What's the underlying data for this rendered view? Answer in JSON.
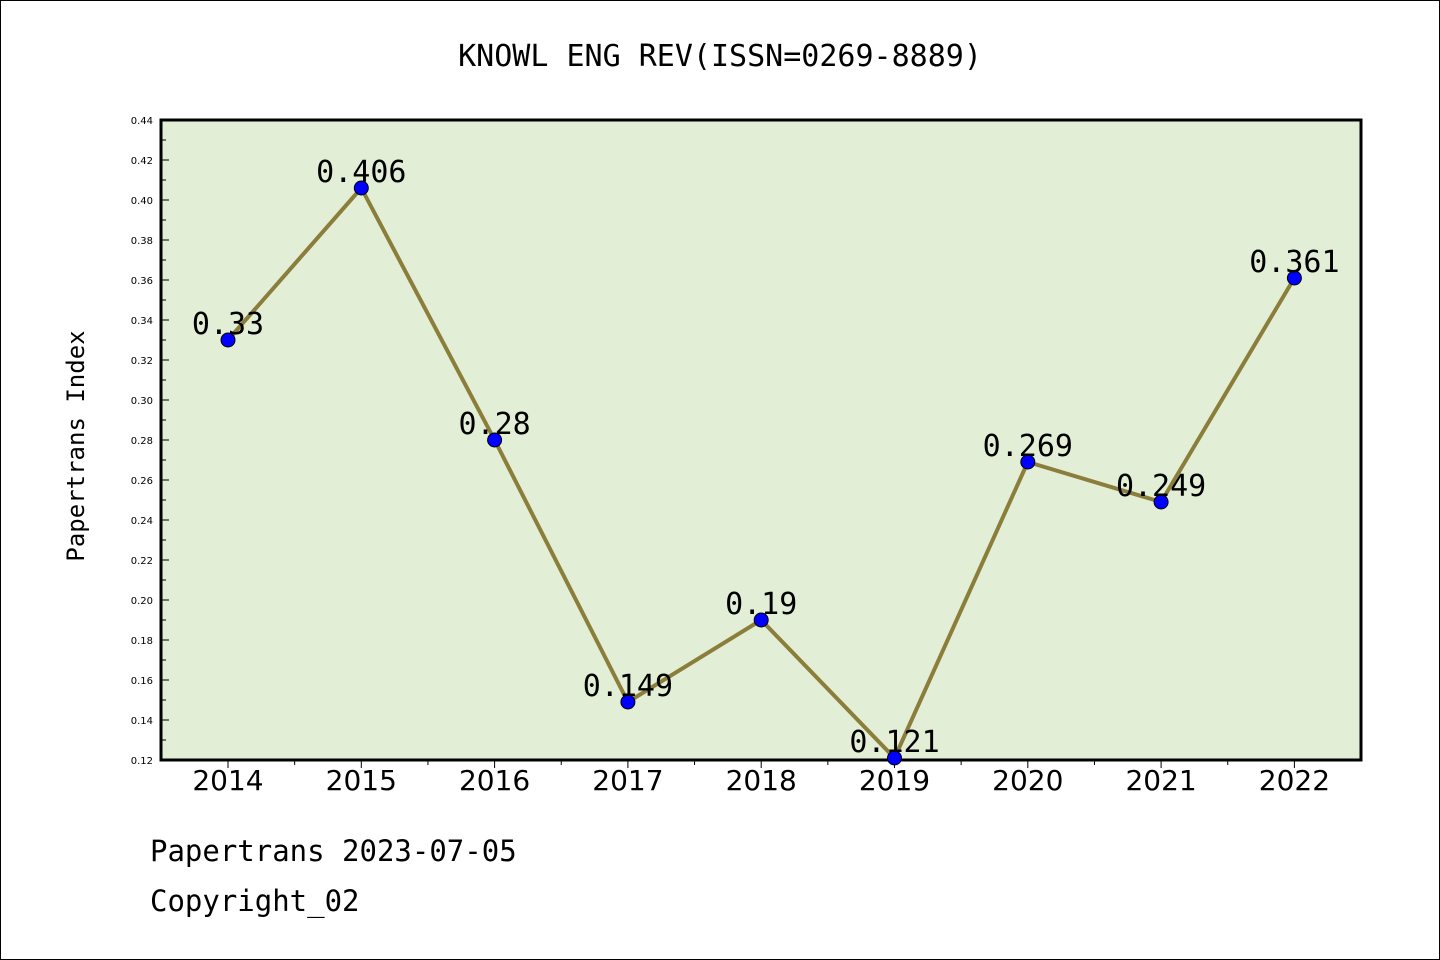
{
  "chart_data": {
    "type": "line",
    "title": "KNOWL ENG REV(ISSN=0269-8889)",
    "xlabel": "",
    "ylabel": "Papertrans Index",
    "categories": [
      "2014",
      "2015",
      "2016",
      "2017",
      "2018",
      "2019",
      "2020",
      "2021",
      "2022"
    ],
    "series": [
      {
        "values": [
          0.33,
          0.406,
          0.28,
          0.149,
          0.19,
          0.121,
          0.269,
          0.249,
          0.361
        ],
        "labels": [
          "0.33",
          "0.406",
          "0.28",
          "0.149",
          "0.19",
          "0.121",
          "0.269",
          "0.249",
          "0.361"
        ]
      }
    ],
    "ylim": [
      0.12,
      0.44
    ],
    "yticks": [
      "0.12",
      "0.14",
      "0.16",
      "0.18",
      "0.20",
      "0.22",
      "0.24",
      "0.26",
      "0.28",
      "0.30",
      "0.32",
      "0.34",
      "0.36",
      "0.38",
      "0.40",
      "0.42",
      "0.44"
    ],
    "grid": false,
    "legend": "none",
    "colors": {
      "plot_background": "#e2efd6",
      "line": "#8b7d3a",
      "marker": "#0000ff",
      "axes": "#000000"
    }
  },
  "footer": {
    "line1": "Papertrans 2023-07-05",
    "line2": "Copyright_02"
  }
}
